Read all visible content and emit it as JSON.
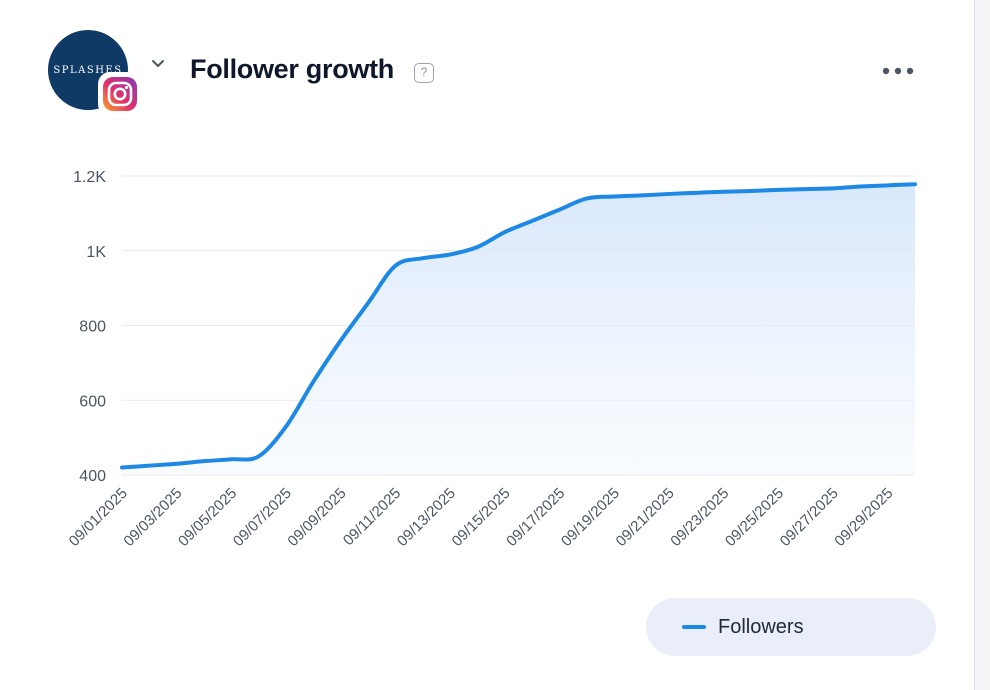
{
  "header": {
    "title": "Follower growth",
    "help_glyph": "?",
    "avatar_text": "SPLASHES",
    "icons": {
      "dropdown": "chevron-down-icon",
      "platform": "instagram-icon",
      "help": "help-icon",
      "menu": "more-horizontal-icon"
    }
  },
  "colors": {
    "line": "#1e88e5",
    "area_top": "#d6e6fb",
    "avatar_bg": "#0f3a66",
    "legend_bg": "#e9eef8"
  },
  "chart_data": {
    "type": "area",
    "x": [
      "09/01/2025",
      "09/02/2025",
      "09/03/2025",
      "09/04/2025",
      "09/05/2025",
      "09/06/2025",
      "09/07/2025",
      "09/08/2025",
      "09/09/2025",
      "09/10/2025",
      "09/11/2025",
      "09/12/2025",
      "09/13/2025",
      "09/14/2025",
      "09/15/2025",
      "09/16/2025",
      "09/17/2025",
      "09/18/2025",
      "09/19/2025",
      "09/20/2025",
      "09/21/2025",
      "09/22/2025",
      "09/23/2025",
      "09/24/2025",
      "09/25/2025",
      "09/26/2025",
      "09/27/2025",
      "09/28/2025",
      "09/29/2025",
      "09/30/2025"
    ],
    "series": [
      {
        "name": "Followers",
        "values": [
          420,
          425,
          430,
          437,
          442,
          450,
          530,
          650,
          760,
          860,
          960,
          980,
          990,
          1010,
          1050,
          1080,
          1110,
          1140,
          1145,
          1148,
          1152,
          1155,
          1158,
          1160,
          1163,
          1165,
          1167,
          1172,
          1175,
          1178
        ]
      }
    ],
    "x_tick_labels": [
      "09/01/2025",
      "09/03/2025",
      "09/05/2025",
      "09/07/2025",
      "09/09/2025",
      "09/11/2025",
      "09/13/2025",
      "09/15/2025",
      "09/17/2025",
      "09/19/2025",
      "09/21/2025",
      "09/23/2025",
      "09/25/2025",
      "09/27/2025",
      "09/29/2025"
    ],
    "y_ticks": [
      400,
      600,
      800,
      1000,
      1200
    ],
    "y_tick_labels": [
      "400",
      "600",
      "800",
      "1K",
      "1.2K"
    ],
    "ylim": [
      400,
      1200
    ],
    "grid": true,
    "legend_position": "bottom-right"
  }
}
